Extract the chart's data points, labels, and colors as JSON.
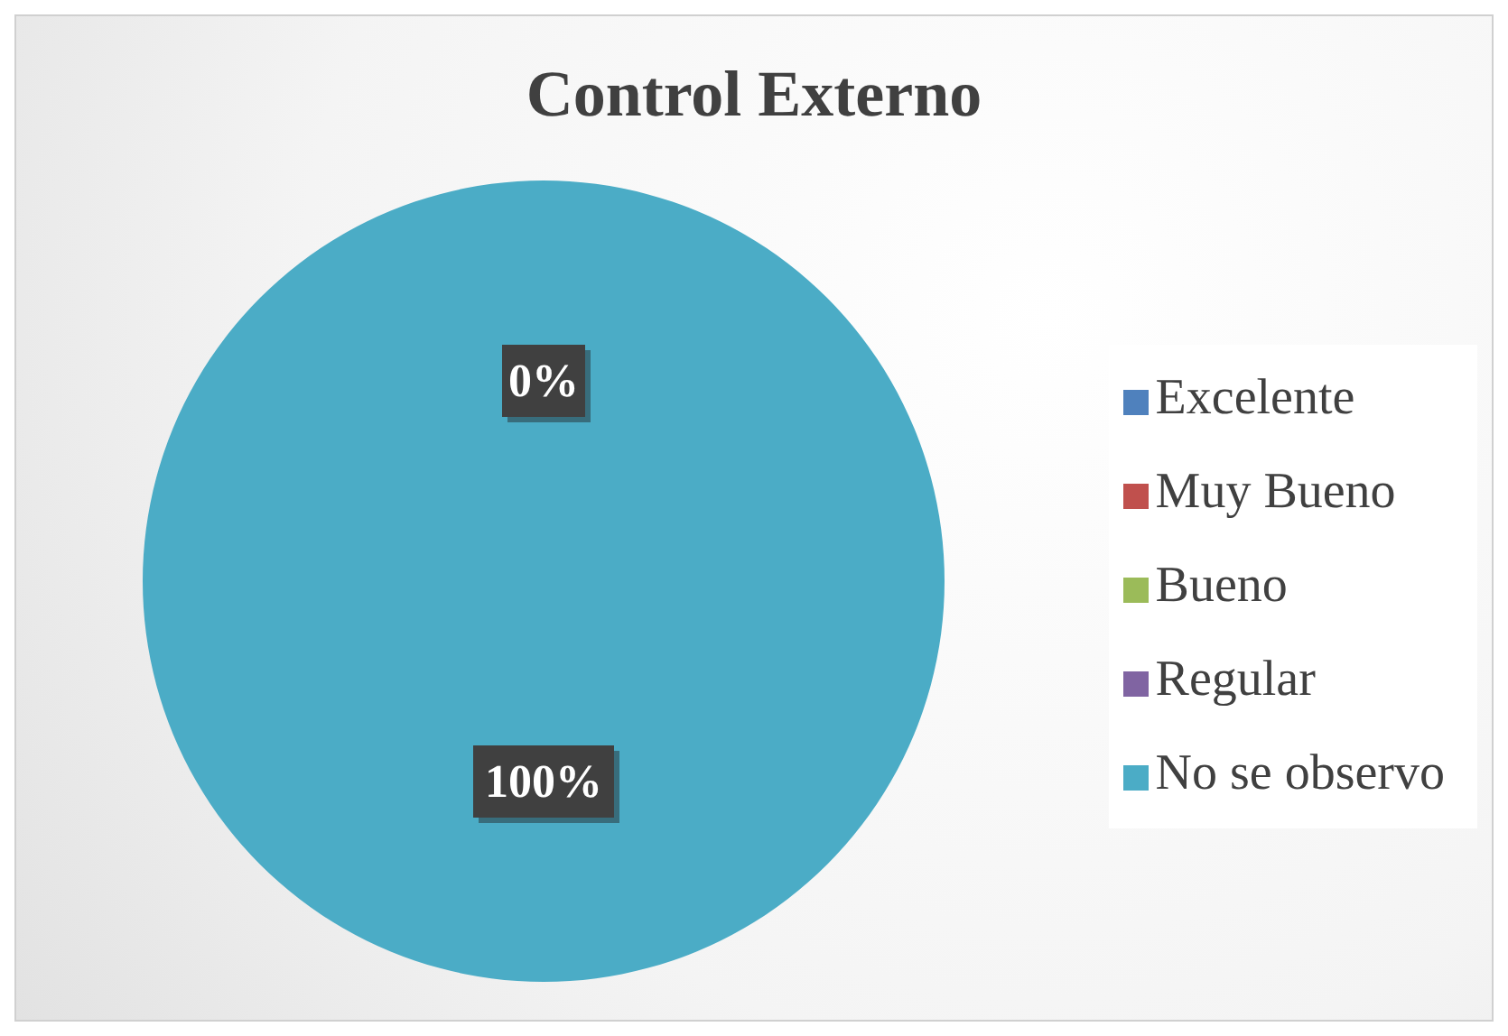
{
  "chart_data": {
    "type": "pie",
    "title": "Control Externo",
    "categories": [
      "Excelente",
      "Muy Bueno",
      "Bueno",
      "Regular",
      "No se observo"
    ],
    "values": [
      0,
      0,
      0,
      0,
      100
    ],
    "colors": [
      "#4f81bd",
      "#c0504d",
      "#9bbb59",
      "#8064a2",
      "#4bacc6"
    ],
    "value_labels": [
      "0%",
      null,
      null,
      null,
      "100%"
    ],
    "legend": "right"
  }
}
